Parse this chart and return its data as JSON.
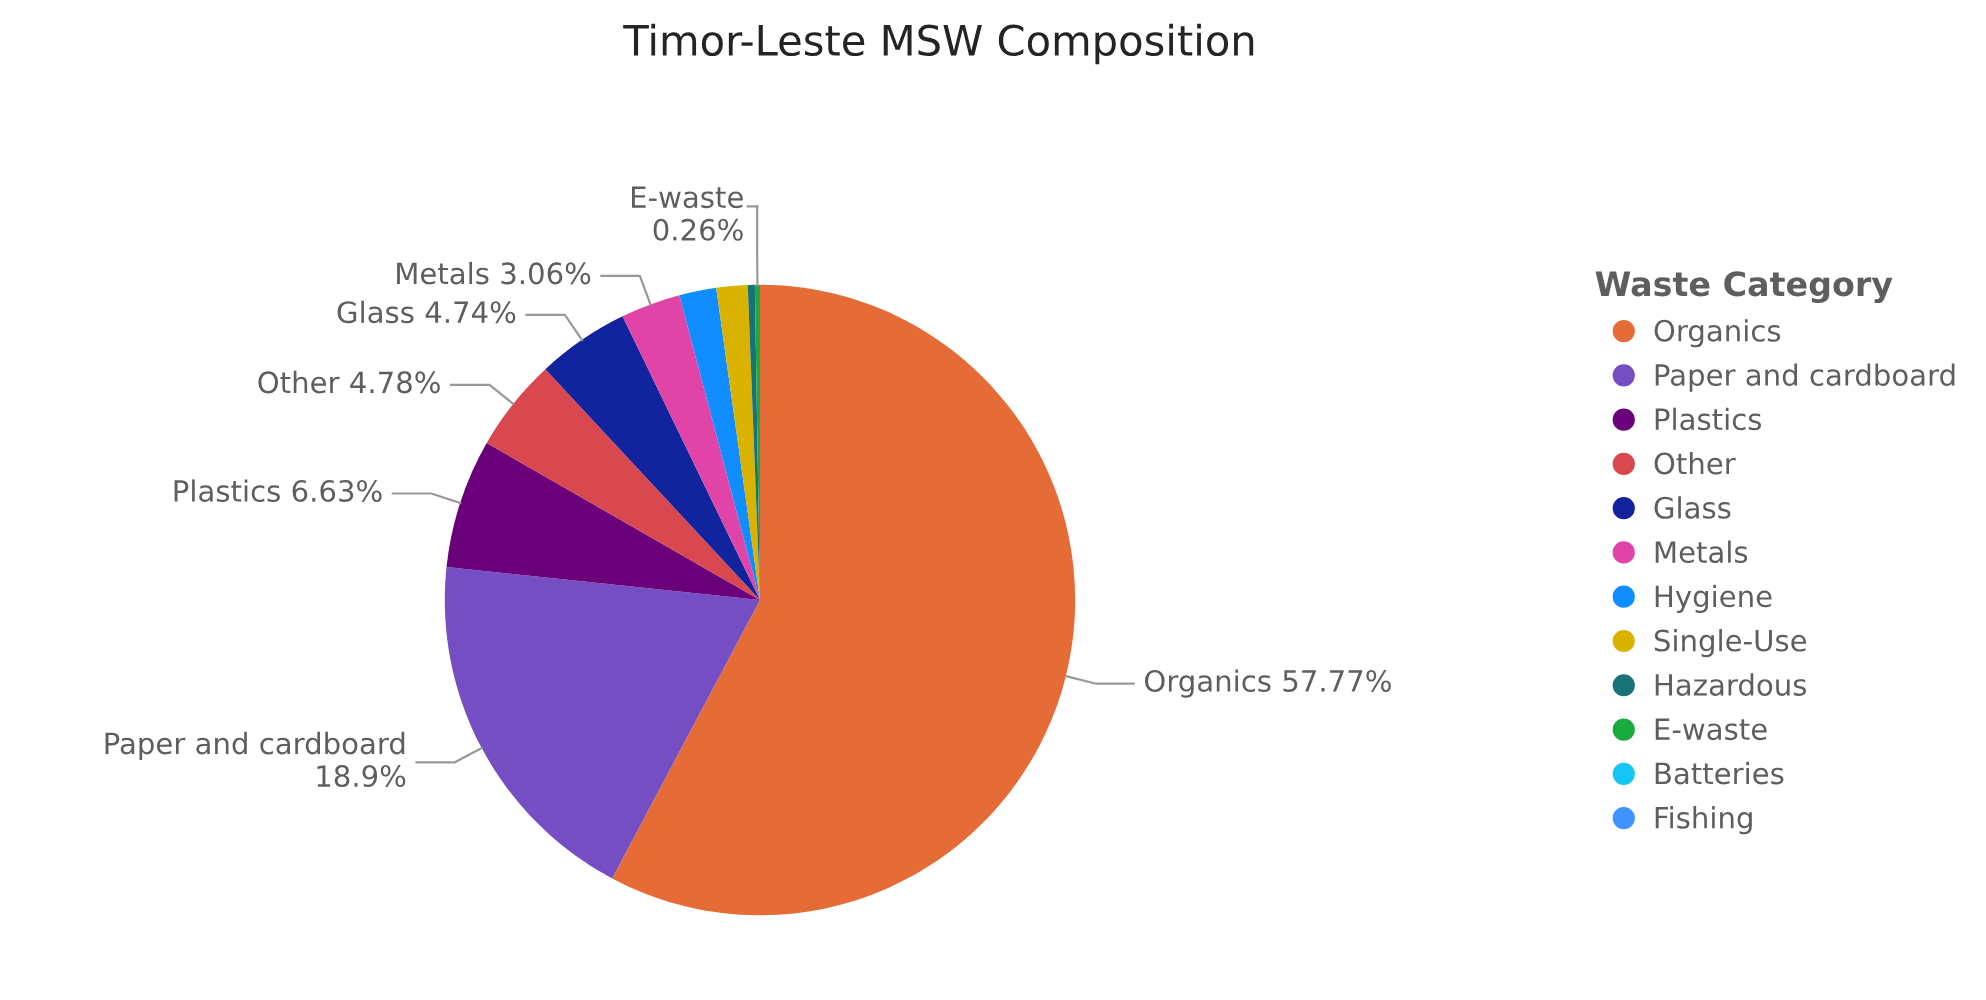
{
  "chart_data": {
    "type": "pie",
    "title": "Timor-Leste MSW Composition",
    "legend_title": "Waste Category",
    "legend": "right",
    "categories": [
      "Organics",
      "Paper and cardboard",
      "Plastics",
      "Other",
      "Glass",
      "Metals",
      "Hygiene",
      "Single-Use",
      "Hazardous",
      "E-waste",
      "Batteries",
      "Fishing"
    ],
    "values": [
      57.77,
      18.9,
      6.63,
      4.78,
      4.74,
      3.06,
      1.9,
      1.6,
      0.36,
      0.26,
      0,
      0
    ],
    "value_labels": [
      "57.77%",
      "18.9%",
      "6.63%",
      "4.78%",
      "4.74%",
      "3.06%",
      null,
      null,
      null,
      "0.26%",
      null,
      null
    ],
    "colors": [
      "#e66c37",
      "#744ec2",
      "#6b007b",
      "#d9484f",
      "#12239e",
      "#e044a7",
      "#118dff",
      "#d9b300",
      "#197278",
      "#1aab40",
      "#15c6f4",
      "#4092ff"
    ]
  }
}
